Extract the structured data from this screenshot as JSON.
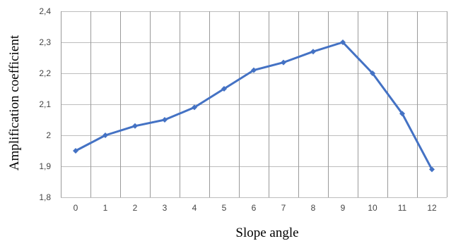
{
  "chart_data": {
    "type": "line",
    "title": "",
    "xlabel": "Slope angle",
    "ylabel": "Amplification coefficient",
    "categories": [
      "0",
      "1",
      "2",
      "3",
      "4",
      "5",
      "6",
      "7",
      "8",
      "9",
      "10",
      "11",
      "12"
    ],
    "series": [
      {
        "values": [
          1.95,
          2.0,
          2.03,
          2.05,
          2.09,
          2.15,
          2.21,
          2.235,
          2.27,
          2.3,
          2.2,
          2.07,
          1.89
        ],
        "color": "#4472C4",
        "marker": "diamond"
      }
    ],
    "ylim": [
      1.8,
      2.4
    ],
    "yticks": [
      1.8,
      1.9,
      2.0,
      2.1,
      2.2,
      2.3,
      2.4
    ],
    "ytick_labels": [
      "1,8",
      "1,9",
      "2",
      "2,1",
      "2,2",
      "2,3",
      "2,4"
    ],
    "grid": true,
    "legend": "none"
  }
}
